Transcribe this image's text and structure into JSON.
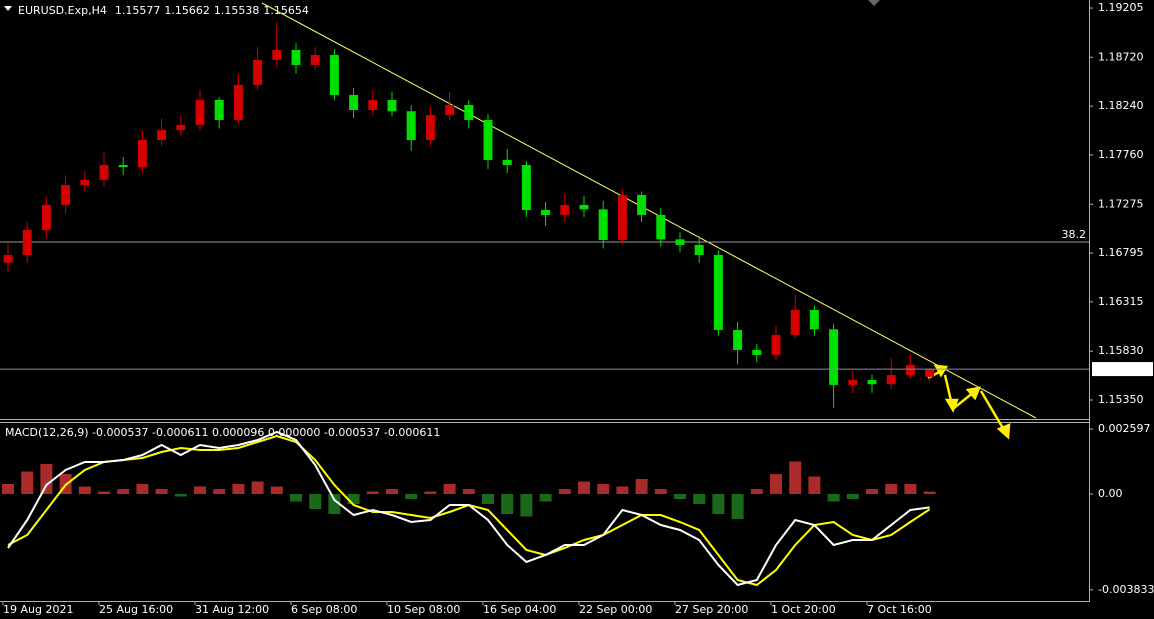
{
  "chart_data": {
    "type": "candlestick",
    "symbol": "EURUSD.Exp,H4",
    "categories": [
      "19 Aug 2021",
      null,
      null,
      null,
      null,
      "25 Aug 16:00",
      null,
      null,
      null,
      null,
      "31 Aug 12:00",
      null,
      null,
      null,
      null,
      "6 Sep 08:00",
      null,
      null,
      null,
      null,
      "10 Sep 08:00",
      null,
      null,
      null,
      null,
      "16 Sep 04:00",
      null,
      null,
      null,
      null,
      "22 Sep 00:00",
      null,
      null,
      null,
      null,
      "27 Sep 20:00",
      null,
      null,
      null,
      null,
      "1 Oct 20:00",
      null,
      null,
      null,
      null,
      "7 Oct 16:00",
      null,
      null,
      null
    ],
    "open": [
      1.167,
      1.16776,
      1.17022,
      1.17268,
      1.17465,
      1.17514,
      1.17661,
      1.1764,
      1.17907,
      1.18006,
      1.18055,
      1.18301,
      1.18104,
      1.18448,
      1.18694,
      1.18792,
      1.18645,
      1.18743,
      1.1835,
      1.18202,
      1.18301,
      1.1819,
      1.17907,
      1.18153,
      1.18251,
      1.18104,
      1.17711,
      1.17661,
      1.17219,
      1.1717,
      1.17268,
      1.17225,
      1.16924,
      1.17366,
      1.1717,
      1.1693,
      1.16875,
      1.16776,
      1.16039,
      1.15842,
      1.15793,
      1.1599,
      1.16235,
      1.16045,
      1.15498,
      1.15547,
      1.15505,
      1.15596,
      1.15577
    ],
    "high": [
      1.1688,
      1.171,
      1.1735,
      1.1756,
      1.176,
      1.1778,
      1.1774,
      1.18,
      1.1812,
      1.1815,
      1.184,
      1.1833,
      1.1856,
      1.1882,
      1.19068,
      1.1886,
      1.1882,
      1.188,
      1.1842,
      1.184,
      1.1838,
      1.1825,
      1.1824,
      1.1838,
      1.183,
      1.1816,
      1.1782,
      1.177,
      1.173,
      1.1738,
      1.1736,
      1.1731,
      1.1742,
      1.174,
      1.1724,
      1.17,
      1.1696,
      1.1682,
      1.1612,
      1.159,
      1.1608,
      1.16383,
      1.1628,
      1.161,
      1.1564,
      1.156,
      1.1576,
      1.158,
      1.15662
    ],
    "low": [
      1.166,
      1.167,
      1.1694,
      1.1718,
      1.174,
      1.1745,
      1.1756,
      1.1758,
      1.1785,
      1.1795,
      1.18,
      1.1802,
      1.1806,
      1.184,
      1.1862,
      1.1856,
      1.186,
      1.183,
      1.1812,
      1.1815,
      1.1814,
      1.178,
      1.1785,
      1.181,
      1.1802,
      1.1762,
      1.1758,
      1.1715,
      1.1706,
      1.171,
      1.1715,
      1.1684,
      1.1688,
      1.171,
      1.1686,
      1.168,
      1.167,
      1.1598,
      1.157,
      1.1572,
      1.1574,
      1.1595,
      1.1598,
      1.15272,
      1.1542,
      1.1542,
      1.1546,
      1.1556,
      1.15538
    ],
    "close": [
      1.16776,
      1.17022,
      1.17268,
      1.17465,
      1.17514,
      1.17661,
      1.1764,
      1.17907,
      1.18006,
      1.18055,
      1.18301,
      1.18104,
      1.18448,
      1.18694,
      1.18792,
      1.18645,
      1.18743,
      1.1835,
      1.18202,
      1.18301,
      1.1819,
      1.17907,
      1.18153,
      1.18251,
      1.18104,
      1.17711,
      1.17661,
      1.17219,
      1.1717,
      1.17268,
      1.17225,
      1.16924,
      1.17366,
      1.1717,
      1.1693,
      1.16875,
      1.16776,
      1.16039,
      1.15842,
      1.15793,
      1.1599,
      1.16235,
      1.16045,
      1.15498,
      1.15547,
      1.15505,
      1.15596,
      1.15695,
      1.15654
    ],
    "up_color": "#d40000",
    "down_color": "#00e000",
    "ylim": [
      1.15163,
      1.19284
    ],
    "yticks": [
      1.19205,
      {
        "value": 1.1872,
        "label": "1.18720"
      },
      {
        "value": 1.1824,
        "label": "1.18240"
      },
      {
        "value": 1.1776,
        "label": "1.17760"
      },
      1.17275,
      1.16795,
      1.16315,
      {
        "value": 1.1583,
        "label": "1.15830"
      },
      {
        "value": 1.1535,
        "label": "1.15350"
      }
    ],
    "fib_level": {
      "label": 38.2,
      "price": 1.16904
    },
    "macd": {
      "title": "MACD(12,26,9) -0.000537 -0.000611 0.000096 0.000000 -0.000537 -0.000611",
      "ylim": [
        -0.00428,
        0.00288
      ],
      "yticks": [
        0.002597,
        {
          "value": 0,
          "label": "0.00"
        },
        -0.003833
      ],
      "line_color": "#ffffff",
      "signal_color": "#ffff00",
      "line": [
        -0.00216,
        -0.00104,
        0.00036,
        0.00096,
        0.00128,
        0.00128,
        0.00136,
        0.00156,
        0.00196,
        0.00156,
        0.00196,
        0.00184,
        0.00196,
        0.00216,
        0.00248,
        0.00216,
        0.00116,
        -0.00024,
        -0.00084,
        -0.00064,
        -0.00084,
        -0.00112,
        -0.00104,
        -0.00044,
        -0.00044,
        -0.00104,
        -0.00204,
        -0.00272,
        -0.00244,
        -0.00204,
        -0.00204,
        -0.00164,
        -0.00064,
        -0.00084,
        -0.00124,
        -0.00144,
        -0.00184,
        -0.00284,
        -0.00364,
        -0.00344,
        -0.00204,
        -0.00104,
        -0.00124,
        -0.00204,
        -0.00184,
        -0.00184,
        -0.00124,
        -0.00064,
        -0.000537
      ],
      "signal": [
        -0.00204,
        -0.00164,
        -0.00064,
        0.00036,
        0.00096,
        0.00128,
        0.00136,
        0.00144,
        0.00168,
        0.00184,
        0.00176,
        0.00176,
        0.00184,
        0.00208,
        0.00232,
        0.00208,
        0.00136,
        0.00036,
        -0.00044,
        -0.00072,
        -0.00072,
        -0.00084,
        -0.00096,
        -0.00072,
        -0.00044,
        -0.00064,
        -0.00144,
        -0.00224,
        -0.00244,
        -0.00216,
        -0.00184,
        -0.00164,
        -0.00124,
        -0.00084,
        -0.00084,
        -0.00112,
        -0.00144,
        -0.00244,
        -0.00344,
        -0.00364,
        -0.00304,
        -0.00204,
        -0.00124,
        -0.00112,
        -0.00164,
        -0.00184,
        -0.00164,
        -0.00112,
        -0.000611
      ],
      "histogram": [
        0.0004,
        0.0009,
        0.0012,
        0.0008,
        0.0003,
        0.0001,
        0.0002,
        0.0004,
        0.0002,
        -0.0001,
        0.0003,
        0.0002,
        0.0004,
        0.0005,
        0.0003,
        -0.0003,
        -0.0006,
        -0.0008,
        -0.0004,
        0.0001,
        0.0002,
        -0.0002,
        0.0001,
        0.0004,
        0.0002,
        -0.0004,
        -0.0008,
        -0.0009,
        -0.0003,
        0.0002,
        0.0005,
        0.0004,
        0.0003,
        0.0006,
        0.0002,
        -0.0002,
        -0.0004,
        -0.0008,
        -0.001,
        0.0002,
        0.0008,
        0.0013,
        0.0007,
        -0.0003,
        -0.0002,
        0.0002,
        0.0004,
        0.0004,
        9.6e-05
      ],
      "hist_up_color": "#c83232",
      "hist_down_color": "#1e7a1e"
    }
  }
}
